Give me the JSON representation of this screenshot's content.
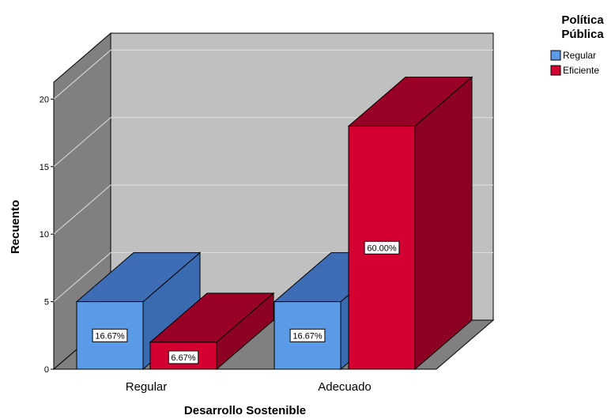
{
  "chart_data": {
    "type": "bar",
    "xlabel": "Desarrollo Sostenible",
    "ylabel": "Recuento",
    "ylim": [
      0,
      20
    ],
    "yticks": [
      0,
      5,
      10,
      15,
      20
    ],
    "grid": true,
    "legend_placement": "top-right",
    "legend_title_lines": [
      "Política",
      "Pública"
    ],
    "categories": [
      "Regular",
      "Adecuado"
    ],
    "series": [
      {
        "name": "Regular",
        "color": "#5a9ae6",
        "side_color": "#3a6ab0",
        "top_color": "#3f6db5",
        "values": [
          5,
          5
        ],
        "labels": [
          "16.67%",
          "16.67%"
        ]
      },
      {
        "name": "Eficiente",
        "color": "#d50032",
        "side_color": "#8c0024",
        "top_color": "#980026",
        "values": [
          2,
          18
        ],
        "labels": [
          "6.67%",
          "60.00%"
        ]
      }
    ]
  }
}
